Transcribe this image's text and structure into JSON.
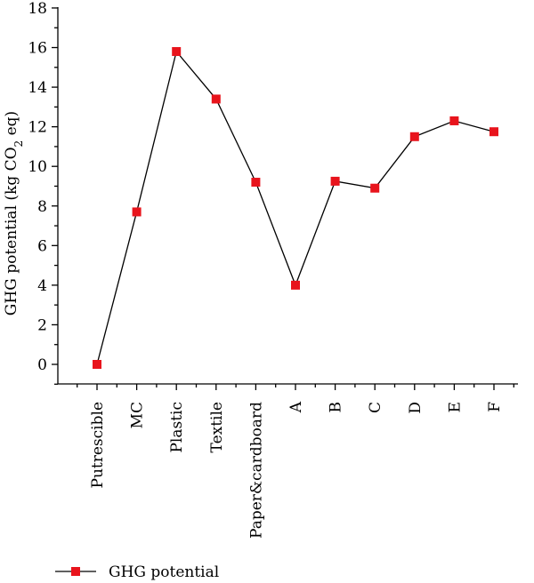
{
  "chart_data": {
    "type": "line",
    "categories": [
      "Putrescible",
      "MC",
      "Plastic",
      "Textile",
      "Paper&cardboard",
      "A",
      "B",
      "C",
      "D",
      "E",
      "F"
    ],
    "series": [
      {
        "name": "GHG potential",
        "values": [
          0.0,
          7.7,
          15.8,
          13.4,
          9.2,
          4.0,
          9.25,
          8.9,
          11.5,
          12.3,
          11.75
        ],
        "color": "#e8141c",
        "marker": "square"
      }
    ],
    "ylabel": {
      "prefix": "GHG potential (kg CO",
      "subscript": "2",
      "suffix": " eq)"
    },
    "ylim": [
      -1,
      18
    ],
    "yticks": [
      0,
      2,
      4,
      6,
      8,
      10,
      12,
      14,
      16,
      18
    ],
    "grid": false,
    "legend_position": "bottom-left"
  }
}
